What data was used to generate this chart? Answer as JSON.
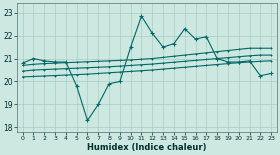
{
  "xlabel": "Humidex (Indice chaleur)",
  "background_color": "#cce8e0",
  "line_color": "#006868",
  "grid_color": "#aaccc4",
  "xlim": [
    -0.5,
    23.5
  ],
  "ylim": [
    17.8,
    23.4
  ],
  "yticks": [
    18,
    19,
    20,
    21,
    22,
    23
  ],
  "xticks": [
    0,
    1,
    2,
    3,
    4,
    5,
    6,
    7,
    8,
    9,
    10,
    11,
    12,
    13,
    14,
    15,
    16,
    17,
    18,
    19,
    20,
    21,
    22,
    23
  ],
  "line1": [
    20.8,
    21.0,
    20.9,
    20.85,
    20.85,
    19.8,
    18.3,
    19.0,
    19.9,
    20.0,
    21.5,
    22.85,
    22.1,
    21.5,
    21.65,
    22.3,
    21.85,
    21.95,
    21.0,
    20.85,
    20.85,
    20.9,
    20.25,
    20.35
  ],
  "line2": [
    20.7,
    20.75,
    20.78,
    20.8,
    20.82,
    20.84,
    20.86,
    20.88,
    20.9,
    20.92,
    20.94,
    20.97,
    21.0,
    21.05,
    21.1,
    21.15,
    21.2,
    21.25,
    21.3,
    21.35,
    21.4,
    21.45,
    21.45,
    21.45
  ],
  "line3": [
    20.45,
    20.5,
    20.52,
    20.54,
    20.56,
    20.58,
    20.6,
    20.62,
    20.64,
    20.67,
    20.7,
    20.73,
    20.76,
    20.8,
    20.84,
    20.88,
    20.92,
    20.96,
    21.0,
    21.04,
    21.08,
    21.12,
    21.15,
    21.15
  ],
  "line4": [
    20.2,
    20.22,
    20.24,
    20.26,
    20.28,
    20.3,
    20.32,
    20.35,
    20.38,
    20.41,
    20.44,
    20.47,
    20.5,
    20.54,
    20.58,
    20.62,
    20.66,
    20.7,
    20.74,
    20.78,
    20.82,
    20.85,
    20.88,
    20.9
  ]
}
